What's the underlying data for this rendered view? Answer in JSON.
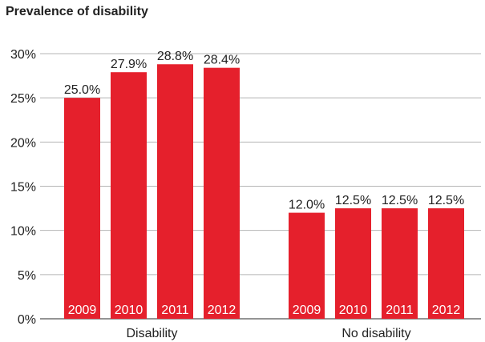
{
  "chart_data": {
    "type": "bar",
    "title": "Prevalence of disability",
    "xlabel": "",
    "ylabel": "",
    "ylim": [
      0,
      30
    ],
    "yticks": [
      "0%",
      "5%",
      "10%",
      "15%",
      "20%",
      "25%",
      "30%"
    ],
    "ytick_values": [
      0,
      5,
      10,
      15,
      20,
      25,
      30
    ],
    "grid": true,
    "legend": "none",
    "bar_color": "#e5202c",
    "groups": [
      {
        "name": "Disability",
        "bars": [
          {
            "year": "2009",
            "value": 25.0,
            "label": "25.0%"
          },
          {
            "year": "2010",
            "value": 27.9,
            "label": "27.9%"
          },
          {
            "year": "2011",
            "value": 28.8,
            "label": "28.8%"
          },
          {
            "year": "2012",
            "value": 28.4,
            "label": "28.4%"
          }
        ]
      },
      {
        "name": "No disability",
        "bars": [
          {
            "year": "2009",
            "value": 12.0,
            "label": "12.0%"
          },
          {
            "year": "2010",
            "value": 12.5,
            "label": "12.5%"
          },
          {
            "year": "2011",
            "value": 12.5,
            "label": "12.5%"
          },
          {
            "year": "2012",
            "value": 12.5,
            "label": "12.5%"
          }
        ]
      }
    ]
  }
}
